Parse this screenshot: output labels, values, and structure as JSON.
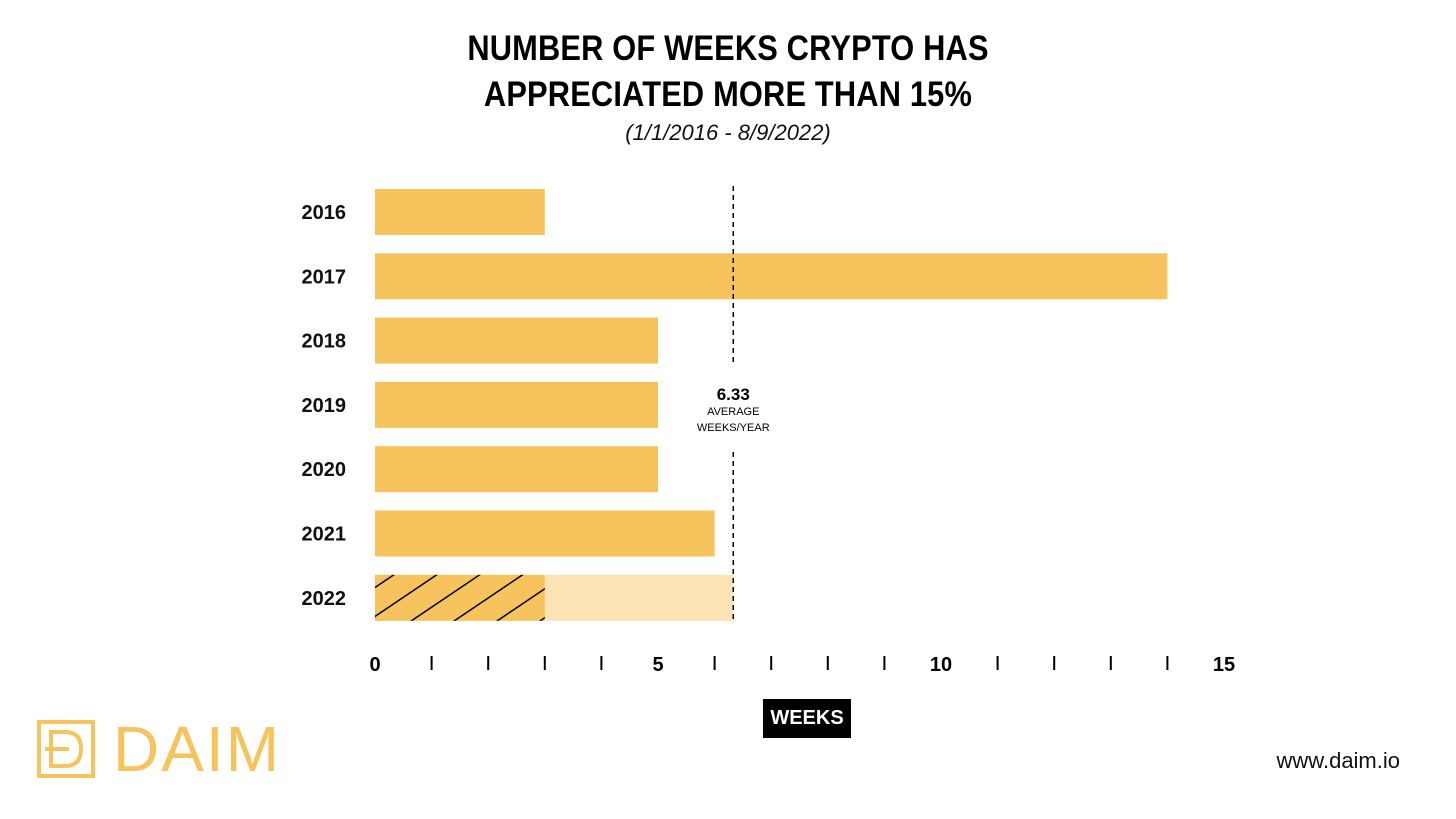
{
  "title_lines": [
    "NUMBER OF WEEKS CRYPTO HAS",
    "APPRECIATED MORE THAN 15%"
  ],
  "subtitle": "(1/1/2016 - 8/9/2022)",
  "x_axis_title": "WEEKS",
  "average": {
    "value": 6.33,
    "value_label": "6.33",
    "label_line1": "AVERAGE",
    "label_line2": "WEEKS/YEAR"
  },
  "logo": {
    "text": "DAIM"
  },
  "website": "www.daim.io",
  "colors": {
    "bar": "#f6c35c",
    "bar_partial_projection": "#fbe3b6",
    "hatch": "#000000",
    "axis_title_bg": "#000000"
  },
  "chart_data": {
    "type": "bar",
    "orientation": "horizontal",
    "categories": [
      "2016",
      "2017",
      "2018",
      "2019",
      "2020",
      "2021",
      "2022"
    ],
    "values": [
      3,
      14,
      5,
      5,
      5,
      6,
      3
    ],
    "partial_year": {
      "category": "2022",
      "actual": 3,
      "projected_to": 6.33,
      "actual_style": "hatched",
      "projection_style": "light"
    },
    "xlim": [
      0,
      15
    ],
    "x_major_ticks": [
      0,
      5,
      10,
      15
    ],
    "x_tick_labels": [
      "0",
      "5",
      "10",
      "15"
    ],
    "x_minor_step": 1,
    "xlabel": "WEEKS",
    "reference_line": {
      "x": 6.33,
      "style": "dashed",
      "label": "6.33 AVERAGE WEEKS/YEAR"
    },
    "grid": false,
    "legend": "none"
  }
}
